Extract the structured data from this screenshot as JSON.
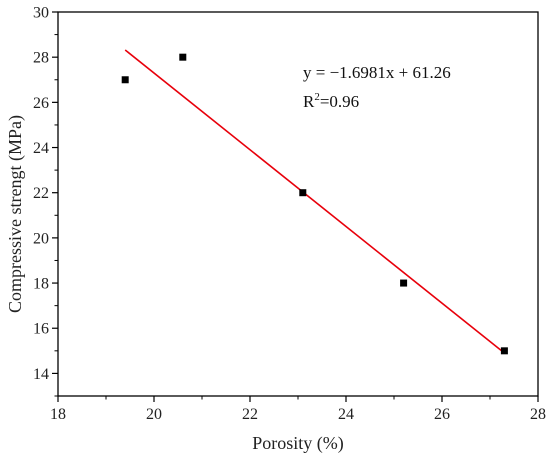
{
  "chart_data": {
    "type": "scatter",
    "xlabel": "Porosity (%)",
    "ylabel": "Compressive strengt (MPa)",
    "xlim": [
      18,
      28
    ],
    "ylim": [
      13,
      30
    ],
    "xticks": [
      18,
      20,
      22,
      24,
      26,
      28
    ],
    "yticks": [
      14,
      16,
      18,
      20,
      22,
      24,
      26,
      28,
      30
    ],
    "grid": false,
    "series": [
      {
        "marker": "square",
        "color": "#000000",
        "x": [
          19.4,
          20.6,
          23.1,
          25.2,
          27.3
        ],
        "y": [
          27.0,
          28.0,
          22.0,
          18.0,
          15.0
        ]
      }
    ],
    "fit_line": {
      "color": "#e8000b",
      "slope": -1.6981,
      "intercept": 61.26,
      "x_range": [
        19.4,
        27.3
      ]
    },
    "annotations": {
      "equation": "y = −1.6981x + 61.26",
      "r2_prefix": "R",
      "r2_sup": "2",
      "r2_value": "=0.96"
    }
  }
}
